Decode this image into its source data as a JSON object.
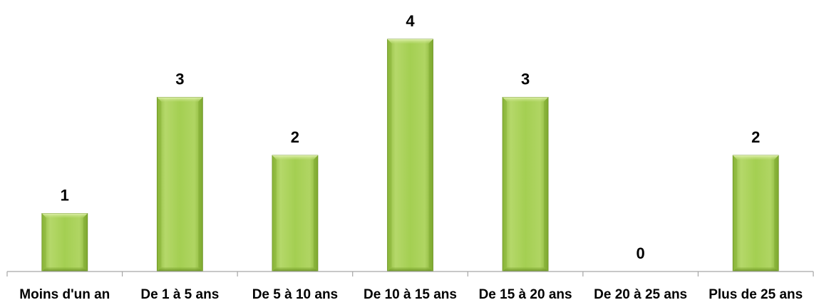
{
  "chart_data": {
    "type": "bar",
    "categories": [
      "Moins d'un an",
      "De 1 à 5 ans",
      "De 5 à 10 ans",
      "De 10 à 15 ans",
      "De 15 à 20 ans",
      "De 20 à 25 ans",
      "Plus de 25 ans"
    ],
    "values": [
      1,
      3,
      2,
      4,
      3,
      0,
      2
    ],
    "title": "",
    "xlabel": "",
    "ylabel": "",
    "ylim": [
      0,
      4
    ],
    "grid": false,
    "legend": "none",
    "data_labels": true,
    "colors": {
      "bar_fill_light": "#c6e37a",
      "bar_fill_mid": "#9bc84a",
      "bar_fill_dark": "#6f9a24",
      "bar_edge": "#6a8f22",
      "axis": "#a6a6a6",
      "text": "#000000"
    }
  }
}
